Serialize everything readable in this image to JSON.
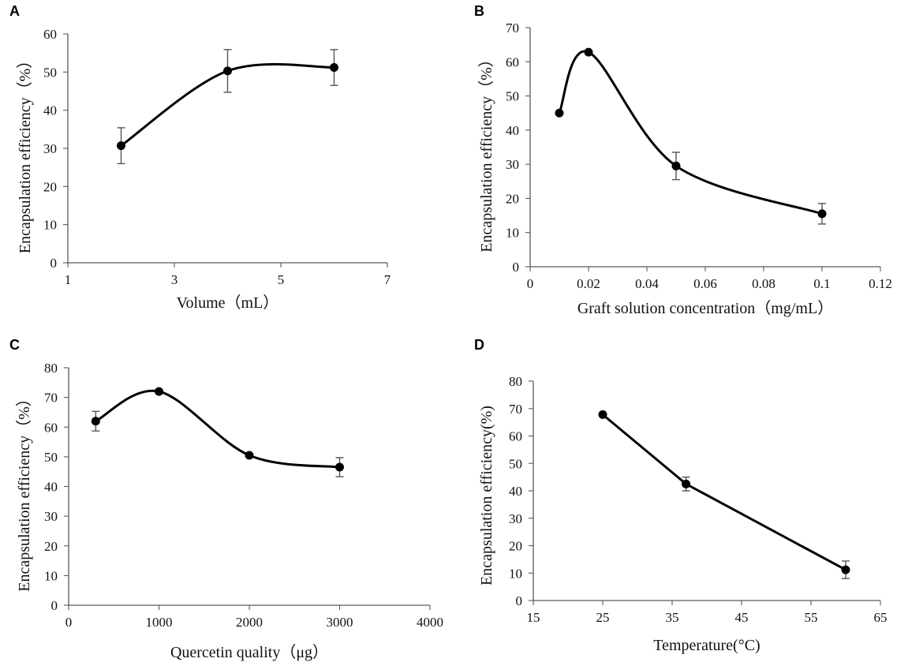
{
  "chart_data": [
    {
      "panel": "A",
      "type": "line",
      "smooth": true,
      "xlabel": "Volume（mL）",
      "ylabel": "Encapsulation efficiency（%）",
      "xlim": [
        1,
        7
      ],
      "ylim": [
        0,
        60
      ],
      "xticks": [
        1,
        3,
        5,
        7
      ],
      "xtick_labels": [
        "1",
        "3",
        "5",
        "7"
      ],
      "yticks": [
        0,
        10,
        20,
        30,
        40,
        50,
        60
      ],
      "ytick_labels": [
        "0",
        "10",
        "20",
        "30",
        "40",
        "50",
        "60"
      ],
      "x": [
        2,
        4,
        6
      ],
      "y": [
        30.7,
        50.3,
        51.2
      ],
      "yerr": [
        4.7,
        5.6,
        4.7
      ]
    },
    {
      "panel": "B",
      "type": "line",
      "smooth": true,
      "xlabel": "Graft solution concentration（mg/mL）",
      "ylabel": "Encapsulation efficiency（%）",
      "xlim": [
        0,
        0.12
      ],
      "ylim": [
        0,
        70
      ],
      "xticks": [
        0,
        0.02,
        0.04,
        0.06,
        0.08,
        0.1,
        0.12
      ],
      "xtick_labels": [
        "0",
        "0.02",
        "0.04",
        "0.06",
        "0.08",
        "0.1",
        "0.12"
      ],
      "yticks": [
        0,
        10,
        20,
        30,
        40,
        50,
        60,
        70
      ],
      "ytick_labels": [
        "0",
        "10",
        "20",
        "30",
        "40",
        "50",
        "60",
        "70"
      ],
      "x": [
        0.01,
        0.02,
        0.05,
        0.1
      ],
      "y": [
        45,
        62.8,
        29.5,
        15.5
      ],
      "yerr": [
        0,
        0.5,
        4,
        3
      ]
    },
    {
      "panel": "C",
      "type": "line",
      "smooth": true,
      "xlabel": "Quercetin quality（μg）",
      "ylabel": "Encapsulation efficiency（%）",
      "xlim": [
        0,
        4000
      ],
      "ylim": [
        0,
        80
      ],
      "xticks": [
        0,
        1000,
        2000,
        3000,
        4000
      ],
      "xtick_labels": [
        "0",
        "1000",
        "2000",
        "3000",
        "4000"
      ],
      "yticks": [
        0,
        10,
        20,
        30,
        40,
        50,
        60,
        70,
        80
      ],
      "ytick_labels": [
        "0",
        "10",
        "20",
        "30",
        "40",
        "50",
        "60",
        "70",
        "80"
      ],
      "x": [
        300,
        1000,
        2000,
        3000
      ],
      "y": [
        62,
        72,
        50.5,
        46.5
      ],
      "yerr": [
        3.3,
        0.5,
        0.5,
        3.2
      ]
    },
    {
      "panel": "D",
      "type": "line",
      "smooth": false,
      "xlabel": "Temperature(°C)",
      "ylabel": "Encapsulation efficiency(%)",
      "xlim": [
        15,
        65
      ],
      "ylim": [
        0,
        80
      ],
      "xticks": [
        15,
        25,
        35,
        45,
        55,
        65
      ],
      "xtick_labels": [
        "15",
        "25",
        "35",
        "45",
        "55",
        "65"
      ],
      "yticks": [
        0,
        10,
        20,
        30,
        40,
        50,
        60,
        70,
        80
      ],
      "ytick_labels": [
        "0",
        "10",
        "20",
        "30",
        "40",
        "50",
        "60",
        "70",
        "80"
      ],
      "x": [
        25,
        37,
        60
      ],
      "y": [
        67.8,
        42.5,
        11.2
      ],
      "yerr": [
        0.5,
        2.5,
        3.2
      ]
    }
  ]
}
